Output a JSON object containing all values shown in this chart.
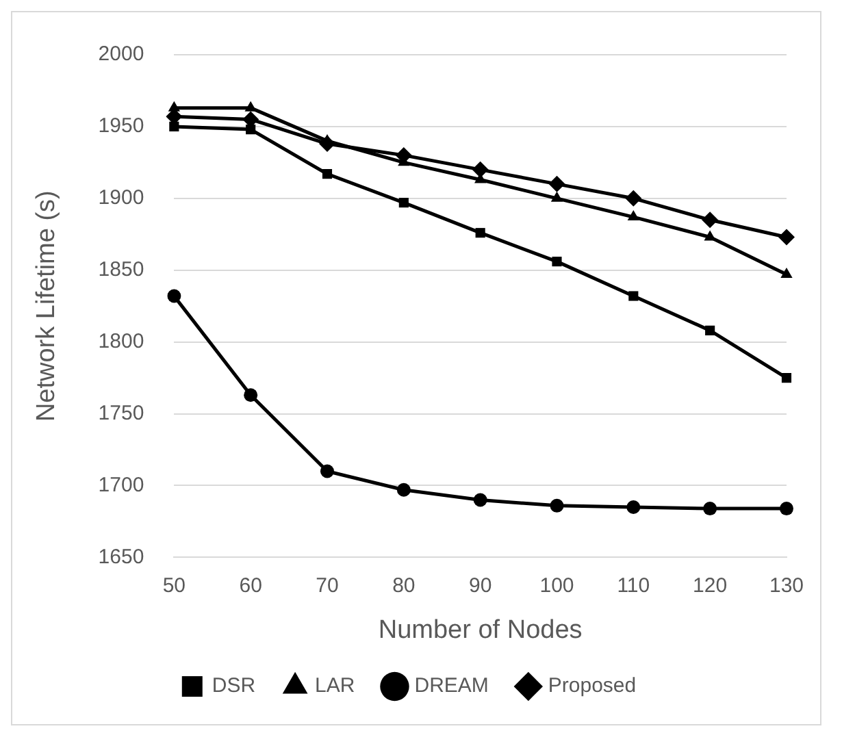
{
  "chart_data": {
    "type": "line",
    "xlabel": "Number of Nodes",
    "ylabel": "Network Lifetime (s)",
    "categories": [
      "50",
      "60",
      "70",
      "80",
      "90",
      "100",
      "110",
      "120",
      "130"
    ],
    "series": [
      {
        "name": "DSR",
        "color": "#000000",
        "marker": "square",
        "values": [
          1950,
          1948,
          1917,
          1897,
          1876,
          1856,
          1832,
          1808,
          1775
        ]
      },
      {
        "name": "LAR",
        "color": "#000000",
        "marker": "triangle",
        "values": [
          1963,
          1963,
          1940,
          1925,
          1913,
          1900,
          1887,
          1873,
          1847
        ]
      },
      {
        "name": "DREAM",
        "color": "#000000",
        "marker": "circle",
        "values": [
          1832,
          1763,
          1710,
          1697,
          1690,
          1686,
          1685,
          1684,
          1684
        ]
      },
      {
        "name": "Proposed",
        "color": "#000000",
        "marker": "diamond",
        "values": [
          1957,
          1955,
          1938,
          1930,
          1920,
          1910,
          1900,
          1885,
          1873
        ]
      }
    ],
    "ylim": [
      1650,
      2000
    ],
    "yticks": [
      1650,
      1700,
      1750,
      1800,
      1850,
      1900,
      1950,
      2000
    ],
    "grid": "y",
    "legend": "bottom",
    "line_style": "solid"
  }
}
